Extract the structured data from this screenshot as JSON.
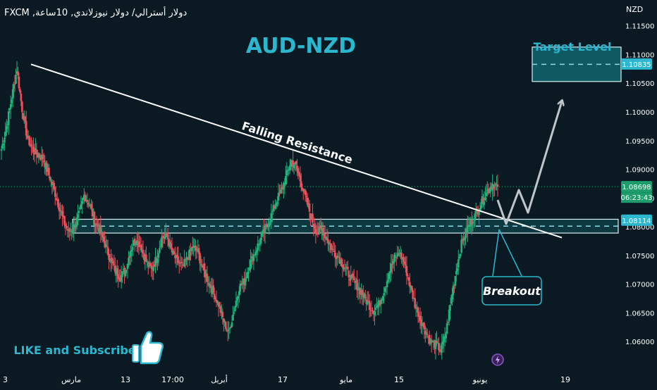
{
  "symbol_line": "دولار أسترالي/ دولار نيوزلاندي, 10ساعة, FXCM",
  "currency_label": "NZD",
  "colors": {
    "background": "#0b1a22",
    "bull": "#1fb37a",
    "bear": "#ef4f5a",
    "accent": "#2bb7cf",
    "zone_fill": "#0f5d66",
    "resistance": "#ffffff",
    "projection": "#bfc5c9"
  },
  "chart_data": {
    "type": "candlestick",
    "title": "AUD-NZD",
    "ylabel": "NZD",
    "ylim": [
      1.0545,
      1.1195
    ],
    "y_ticks": [
      1.115,
      1.11,
      1.105,
      1.1,
      1.095,
      1.09,
      1.085,
      1.08,
      1.075,
      1.07,
      1.065,
      1.06
    ],
    "x_ticks": [
      "3",
      "مارس",
      "13",
      "17:00",
      "أبريل",
      "17",
      "مايو",
      "15",
      "يونيو",
      "19"
    ],
    "price_labels": {
      "target": "1.10835",
      "current": "1.08698",
      "countdown": "06:23:43",
      "support": "1.08114"
    },
    "annotations": {
      "resistance": "Falling Resistance",
      "target": "Target Level",
      "breakout": "Breakout",
      "cta": "LIKE and Subscribe"
    },
    "support_zone": [
      1.0789,
      1.0813
    ],
    "target_zone": [
      1.1053,
      1.1113
    ],
    "resistance_line": [
      [
        1.1083,
        0
      ],
      [
        1.0781,
        1
      ]
    ],
    "closes": [
      1.0935,
      1.0975,
      1.1025,
      1.1075,
      1.1005,
      1.0955,
      1.0935,
      1.0925,
      1.092,
      1.0895,
      1.087,
      1.084,
      1.081,
      1.079,
      1.08,
      1.082,
      1.0855,
      1.084,
      1.081,
      1.0795,
      1.077,
      1.0745,
      1.0725,
      1.0712,
      1.0725,
      1.076,
      1.078,
      1.0765,
      1.074,
      1.0725,
      1.0745,
      1.078,
      1.0785,
      1.0755,
      1.074,
      1.073,
      1.0745,
      1.0765,
      1.0755,
      1.0725,
      1.0705,
      1.0685,
      1.0665,
      1.0635,
      1.0615,
      1.0655,
      1.0695,
      1.0705,
      1.0735,
      1.0755,
      1.0775,
      1.0795,
      1.0815,
      1.084,
      1.086,
      1.0885,
      1.0915,
      1.0905,
      1.0875,
      1.0845,
      1.0815,
      1.079,
      1.0795,
      1.078,
      1.076,
      1.075,
      1.0735,
      1.072,
      1.0705,
      1.0695,
      1.068,
      1.0665,
      1.0655,
      1.0665,
      1.069,
      1.072,
      1.0745,
      1.0755,
      1.0735,
      1.07,
      1.0665,
      1.064,
      1.062,
      1.06,
      1.0595,
      1.0585,
      1.0615,
      1.0675,
      1.0725,
      1.077,
      1.0795,
      1.081,
      1.0825,
      1.0845,
      1.0862,
      1.0875,
      1.08698
    ]
  }
}
